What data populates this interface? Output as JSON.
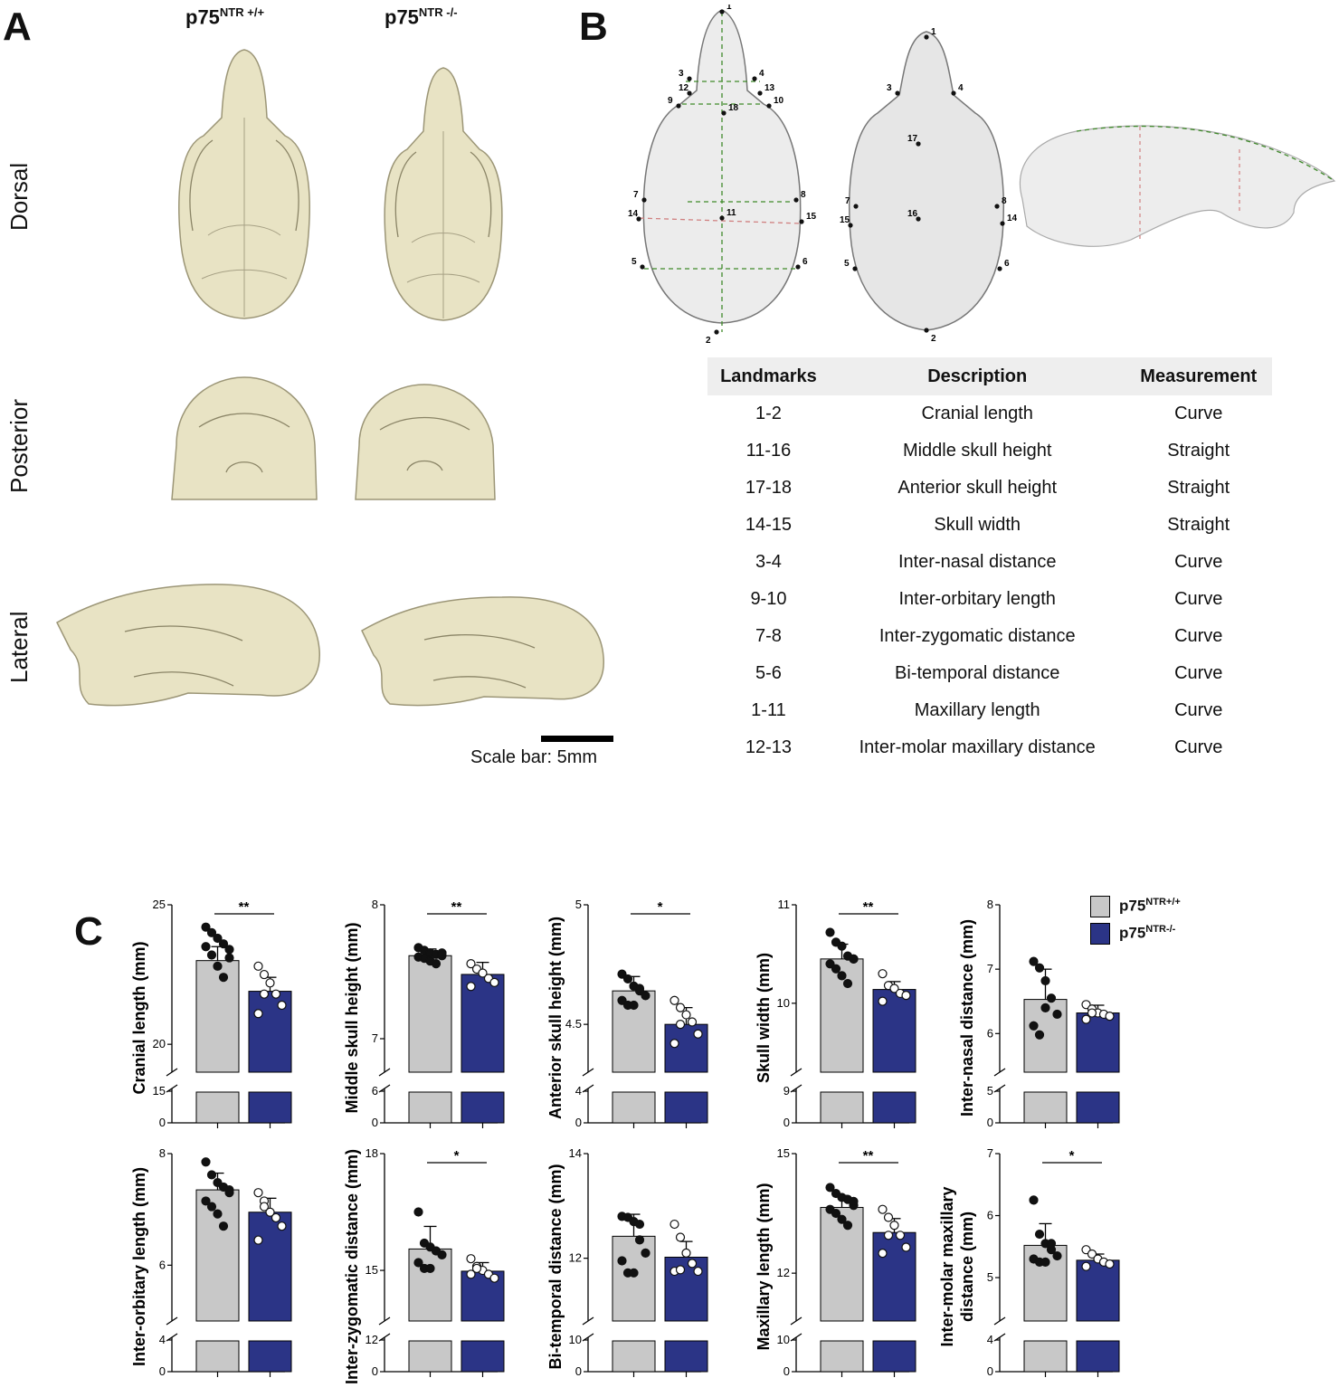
{
  "panels": {
    "a": "A",
    "b": "B",
    "c": "C"
  },
  "panel_a": {
    "col_wt": {
      "base": "p75",
      "sup": "NTR +/+"
    },
    "col_ko": {
      "base": "p75",
      "sup": "NTR -/-"
    },
    "rows": [
      "Dorsal",
      "Posterior",
      "Lateral"
    ],
    "scale_bar": "Scale bar: 5mm",
    "bone_color": "#e8e3c4"
  },
  "panel_b": {
    "dorsal_points": [
      "1",
      "2",
      "3",
      "4",
      "5",
      "6",
      "7",
      "8",
      "9",
      "10",
      "11",
      "12",
      "13",
      "14",
      "15",
      "18"
    ],
    "ventral_points": [
      "1",
      "2",
      "3",
      "4",
      "5",
      "6",
      "7",
      "8",
      "14",
      "15",
      "16",
      "17"
    ],
    "table": {
      "headers": [
        "Landmarks",
        "Description",
        "Measurement"
      ],
      "rows": [
        [
          "1-2",
          "Cranial length",
          "Curve"
        ],
        [
          "11-16",
          "Middle skull height",
          "Straight"
        ],
        [
          "17-18",
          "Anterior skull height",
          "Straight"
        ],
        [
          "14-15",
          "Skull width",
          "Straight"
        ],
        [
          "3-4",
          "Inter-nasal distance",
          "Curve"
        ],
        [
          "9-10",
          "Inter-orbitary length",
          "Curve"
        ],
        [
          "7-8",
          "Inter-zygomatic distance",
          "Curve"
        ],
        [
          "5-6",
          "Bi-temporal distance",
          "Curve"
        ],
        [
          "1-11",
          "Maxillary length",
          "Curve"
        ],
        [
          "12-13",
          "Inter-molar maxillary distance",
          "Curve"
        ]
      ]
    }
  },
  "legend": {
    "wt": {
      "base": "p75",
      "sup": "NTR+/+",
      "color": "#c8c8c8"
    },
    "ko": {
      "base": "p75",
      "sup": "NTR-/-",
      "color": "#2b3486"
    }
  },
  "chart_data": [
    {
      "type": "bar",
      "ylabel": "Cranial length (mm)",
      "upper_ticks": [
        20,
        25
      ],
      "lower_ticks": [
        0,
        15
      ],
      "ylim": [
        19,
        25
      ],
      "categories": [
        "p75NTR+/+",
        "p75NTR-/-"
      ],
      "values": [
        23.0,
        21.9
      ],
      "sd": [
        0.5,
        0.5
      ],
      "sig": "**",
      "points": [
        [
          24.2,
          24.0,
          23.8,
          23.6,
          23.4,
          23.5,
          23.2,
          22.8,
          22.4,
          23.1
        ],
        [
          22.8,
          22.5,
          22.2,
          21.8,
          21.4,
          21.1,
          21.8
        ]
      ]
    },
    {
      "type": "bar",
      "ylabel": "Middle skull height (mm)",
      "upper_ticks": [
        7,
        8
      ],
      "lower_ticks": [
        0,
        6
      ],
      "ylim": [
        6.75,
        8
      ],
      "categories": [
        "p75NTR+/+",
        "p75NTR-/-"
      ],
      "values": [
        7.62,
        7.48
      ],
      "sd": [
        0.05,
        0.09
      ],
      "sig": "**",
      "points": [
        [
          7.68,
          7.66,
          7.64,
          7.63,
          7.62,
          7.61,
          7.6,
          7.58,
          7.56,
          7.64
        ],
        [
          7.56,
          7.52,
          7.49,
          7.45,
          7.42,
          7.39
        ]
      ]
    },
    {
      "type": "bar",
      "ylabel": "Anterior skull height (mm)",
      "upper_ticks": [
        4.5,
        5.0
      ],
      "lower_ticks": [
        0,
        4
      ],
      "ylim": [
        4.3,
        5.0
      ],
      "categories": [
        "p75NTR+/+",
        "p75NTR-/-"
      ],
      "values": [
        4.64,
        4.5
      ],
      "sd": [
        0.06,
        0.07
      ],
      "sig": "*",
      "points": [
        [
          4.71,
          4.69,
          4.66,
          4.64,
          4.62,
          4.6,
          4.58,
          4.58,
          4.65
        ],
        [
          4.6,
          4.57,
          4.54,
          4.51,
          4.46,
          4.42,
          4.5
        ]
      ]
    },
    {
      "type": "bar",
      "ylabel": "Skull width (mm)",
      "upper_ticks": [
        10,
        11
      ],
      "lower_ticks": [
        0,
        9
      ],
      "ylim": [
        9.3,
        11
      ],
      "categories": [
        "p75NTR+/+",
        "p75NTR-/-"
      ],
      "values": [
        10.45,
        10.14
      ],
      "sd": [
        0.15,
        0.08
      ],
      "sig": "**",
      "points": [
        [
          10.72,
          10.62,
          10.58,
          10.48,
          10.45,
          10.4,
          10.35,
          10.28,
          10.2,
          10.45
        ],
        [
          10.3,
          10.18,
          10.15,
          10.1,
          10.08,
          10.02
        ]
      ]
    },
    {
      "type": "bar",
      "ylabel": "Inter-nasal distance (mm)",
      "upper_ticks": [
        6,
        7,
        8
      ],
      "lower_ticks": [
        0,
        5
      ],
      "ylim": [
        5.4,
        8
      ],
      "categories": [
        "p75NTR+/+",
        "p75NTR-/-"
      ],
      "values": [
        6.53,
        6.32
      ],
      "sd": [
        0.47,
        0.12
      ],
      "sig": "",
      "points": [
        [
          7.12,
          7.02,
          6.82,
          6.55,
          6.3,
          6.12,
          5.98,
          6.4
        ],
        [
          6.45,
          6.38,
          6.32,
          6.3,
          6.27,
          6.22,
          6.32
        ]
      ]
    },
    {
      "type": "bar",
      "ylabel": "Inter-orbitary length (mm)",
      "upper_ticks": [
        6,
        8
      ],
      "lower_ticks": [
        0,
        4
      ],
      "ylim": [
        5.0,
        8
      ],
      "categories": [
        "p75NTR+/+",
        "p75NTR-/-"
      ],
      "values": [
        7.35,
        6.95
      ],
      "sd": [
        0.3,
        0.25
      ],
      "sig": "",
      "points": [
        [
          7.85,
          7.62,
          7.48,
          7.4,
          7.3,
          7.15,
          7.05,
          6.92,
          6.7,
          7.35
        ],
        [
          7.3,
          7.15,
          6.95,
          6.85,
          6.7,
          6.45,
          7.05
        ]
      ]
    },
    {
      "type": "bar",
      "ylabel": "Inter-zygomatic distance (mm)",
      "upper_ticks": [
        15,
        18
      ],
      "lower_ticks": [
        0,
        12
      ],
      "ylim": [
        13.7,
        18
      ],
      "categories": [
        "p75NTR+/+",
        "p75NTR-/-"
      ],
      "values": [
        15.55,
        14.98
      ],
      "sd": [
        0.58,
        0.22
      ],
      "sig": "*",
      "points": [
        [
          16.5,
          15.7,
          15.6,
          15.5,
          15.4,
          15.2,
          15.05,
          15.05,
          15.5
        ],
        [
          15.3,
          15.1,
          15.0,
          14.9,
          14.8,
          14.9,
          15.05
        ]
      ]
    },
    {
      "type": "bar",
      "ylabel": "Bi-temporal distance (mm)",
      "upper_ticks": [
        12,
        14
      ],
      "lower_ticks": [
        0,
        10
      ],
      "ylim": [
        10.8,
        14
      ],
      "categories": [
        "p75NTR+/+",
        "p75NTR-/-"
      ],
      "values": [
        12.42,
        12.02
      ],
      "sd": [
        0.42,
        0.3
      ],
      "sig": "",
      "points": [
        [
          12.8,
          12.78,
          12.7,
          12.65,
          12.1,
          11.95,
          11.72,
          11.72,
          12.35
        ],
        [
          12.65,
          12.4,
          12.1,
          11.9,
          11.75,
          11.75,
          11.78
        ]
      ]
    },
    {
      "type": "bar",
      "ylabel": "Maxillary length (mm)",
      "upper_ticks": [
        12,
        15
      ],
      "lower_ticks": [
        0,
        10
      ],
      "ylim": [
        10.8,
        15
      ],
      "categories": [
        "p75NTR+/+",
        "p75NTR-/-"
      ],
      "values": [
        13.65,
        13.02
      ],
      "sd": [
        0.3,
        0.35
      ],
      "sig": "**",
      "points": [
        [
          14.15,
          14.0,
          13.9,
          13.85,
          13.7,
          13.6,
          13.5,
          13.35,
          13.2,
          13.8
        ],
        [
          13.6,
          13.4,
          13.2,
          12.95,
          12.65,
          12.5,
          12.95
        ]
      ]
    },
    {
      "type": "bar",
      "ylabel": "Inter-molar maxillary\ndistance (mm)",
      "upper_ticks": [
        5,
        6,
        7
      ],
      "lower_ticks": [
        0,
        4
      ],
      "ylim": [
        4.3,
        7
      ],
      "categories": [
        "p75NTR+/+",
        "p75NTR-/-"
      ],
      "values": [
        5.52,
        5.28
      ],
      "sd": [
        0.35,
        0.1
      ],
      "sig": "*",
      "points": [
        [
          6.25,
          5.7,
          5.55,
          5.45,
          5.35,
          5.3,
          5.25,
          5.25,
          5.55
        ],
        [
          5.45,
          5.38,
          5.3,
          5.25,
          5.22,
          5.18
        ]
      ]
    }
  ]
}
